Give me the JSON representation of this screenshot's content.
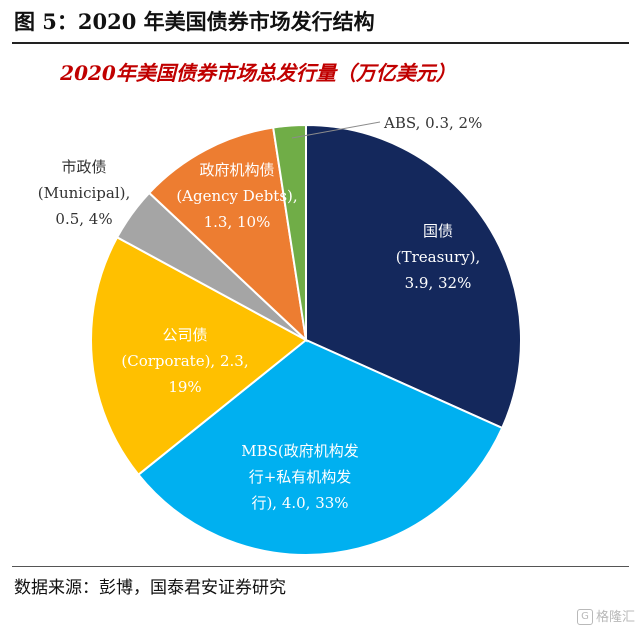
{
  "figure_title": "图 5：2020 年美国债券市场发行结构",
  "source_note": "数据来源：彭博，国泰君安证券研究",
  "watermark": {
    "icon": "G",
    "text": "格隆汇"
  },
  "chart_data": {
    "type": "pie",
    "title": "2020年美国债券市场总发行量（万亿美元）",
    "slices": [
      {
        "label_lines": [
          "国债",
          "(Treasury),",
          "3.9, 32%"
        ],
        "value": 3.9,
        "percent": 32,
        "color": "#14285c",
        "label_color": "#ffffff"
      },
      {
        "label_lines": [
          "MBS(政府机构发",
          "行+私有机构发",
          "行), 4.0, 33%"
        ],
        "value": 4.0,
        "percent": 33,
        "color": "#00b0f0",
        "label_color": "#ffffff"
      },
      {
        "label_lines": [
          "公司债",
          "(Corporate), 2.3,",
          "19%"
        ],
        "value": 2.3,
        "percent": 19,
        "color": "#ffc000",
        "label_color": "#ffffff"
      },
      {
        "label_lines": [
          "市政债",
          "(Municipal),",
          "0.5, 4%"
        ],
        "value": 0.5,
        "percent": 4,
        "color": "#a5a5a5",
        "label_color": "#333333"
      },
      {
        "label_lines": [
          "政府机构债",
          "(Agency Debts),",
          "1.3, 10%"
        ],
        "value": 1.3,
        "percent": 10,
        "color": "#ed7d31",
        "label_color": "#ffffff"
      },
      {
        "label_lines": [
          "ABS, 0.3, 2%"
        ],
        "value": 0.3,
        "percent": 2,
        "color": "#70ad47",
        "label_color": "#333333"
      }
    ]
  }
}
